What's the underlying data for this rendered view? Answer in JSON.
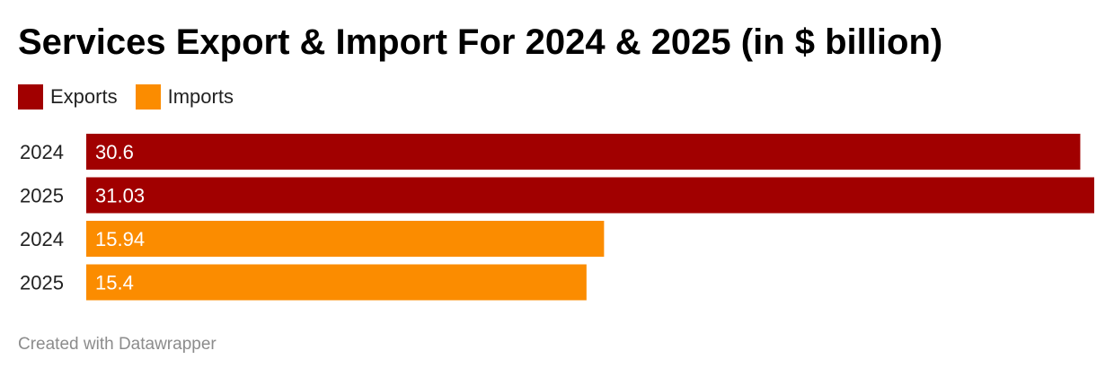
{
  "title": "Services Export & Import For 2024 & 2025 (in $ billion)",
  "legend": [
    {
      "label": "Exports",
      "color": "#a10000"
    },
    {
      "label": "Imports",
      "color": "#fb8c00"
    }
  ],
  "chart_data": {
    "type": "bar",
    "orientation": "horizontal",
    "title": "Services Export & Import For 2024 & 2025 (in $ billion)",
    "xlabel": "",
    "ylabel": "",
    "grid": false,
    "legend_position": "top-left",
    "categories": [
      "2024",
      "2025",
      "2024",
      "2025"
    ],
    "series": [
      {
        "name": "Exports",
        "color": "#a10000",
        "values": [
          30.6,
          31.03,
          null,
          null
        ]
      },
      {
        "name": "Imports",
        "color": "#fb8c00",
        "values": [
          null,
          null,
          15.94,
          15.4
        ]
      }
    ],
    "bars": [
      {
        "category": "2024",
        "series": "Exports",
        "value": 30.6,
        "label": "30.6"
      },
      {
        "category": "2025",
        "series": "Exports",
        "value": 31.03,
        "label": "31.03"
      },
      {
        "category": "2024",
        "series": "Imports",
        "value": 15.94,
        "label": "15.94"
      },
      {
        "category": "2025",
        "series": "Imports",
        "value": 15.4,
        "label": "15.4"
      }
    ],
    "xlim": [
      0,
      31.03
    ]
  },
  "footer": "Created with Datawrapper"
}
